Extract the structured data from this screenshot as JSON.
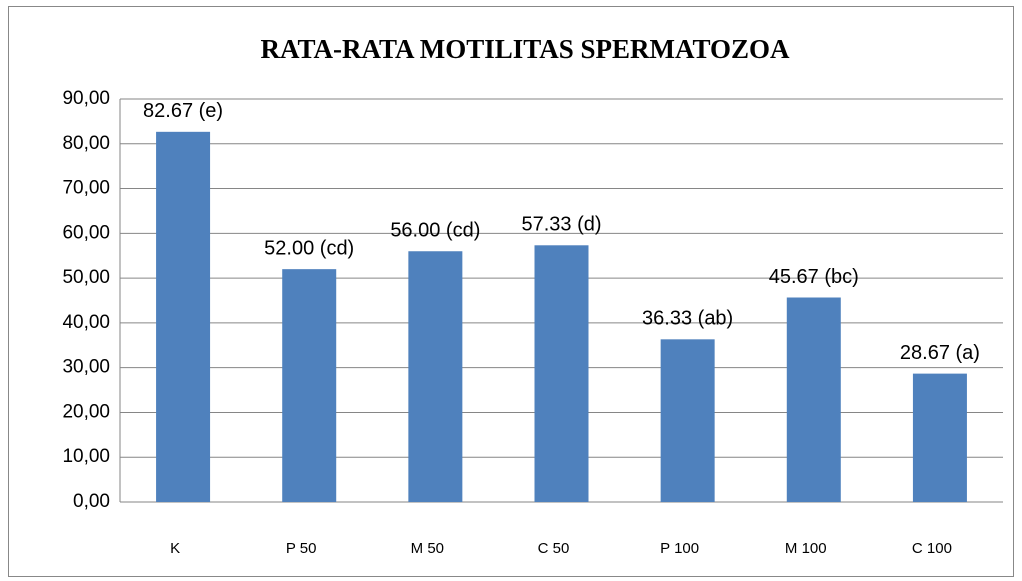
{
  "chart_data": {
    "type": "bar",
    "title": "RATA-RATA MOTILITAS SPERMATOZOA",
    "categories": [
      "K",
      "P 50",
      "M 50",
      "C 50",
      "P 100",
      "M 100",
      "C 100"
    ],
    "values": [
      82.67,
      52.0,
      56.0,
      57.33,
      36.33,
      45.67,
      28.67
    ],
    "value_labels": [
      "82.67 (e)",
      "52.00 (cd)",
      "56.00 (cd)",
      "57.33 (d)",
      "36.33 (ab)",
      "45.67 (bc)",
      "28.67 (a)"
    ],
    "color": "#4f81bd",
    "ylim": [
      0,
      90
    ],
    "yticks": [
      {
        "value": 0,
        "label": "0,00"
      },
      {
        "value": 10,
        "label": "10,00"
      },
      {
        "value": 20,
        "label": "20,00"
      },
      {
        "value": 30,
        "label": "30,00"
      },
      {
        "value": 40,
        "label": "40,00"
      },
      {
        "value": 50,
        "label": "50,00"
      },
      {
        "value": 60,
        "label": "60,00"
      },
      {
        "value": 70,
        "label": "70,00"
      },
      {
        "value": 80,
        "label": "80,00"
      },
      {
        "value": 90,
        "label": "90,00"
      }
    ],
    "grid": true
  }
}
